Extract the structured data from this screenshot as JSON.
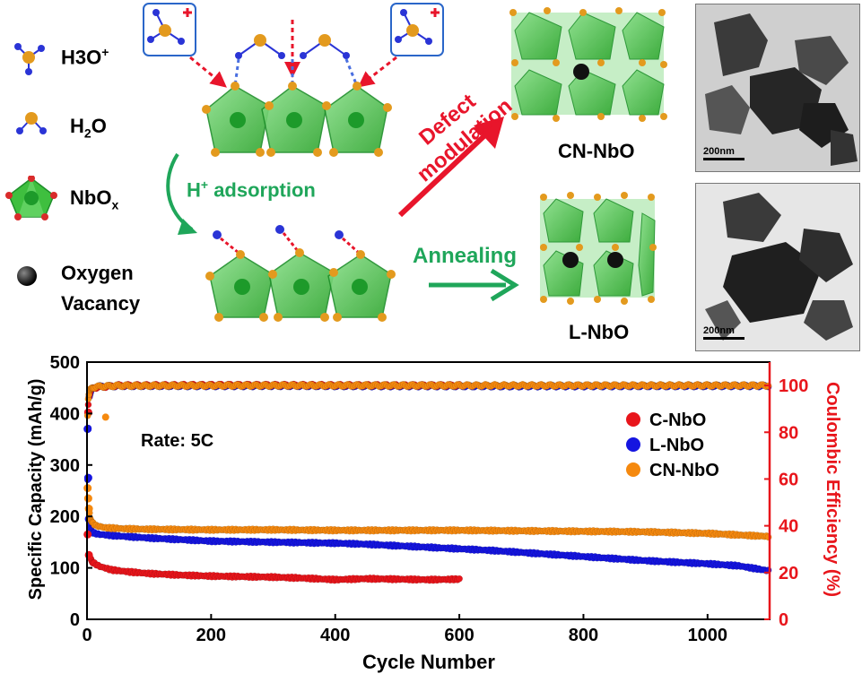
{
  "legend_schematic": {
    "h3o_label": "H3O",
    "h3o_sup": "+",
    "h2o_label": "H",
    "h2o_sub": "2",
    "h2o_tail": "O",
    "nbo_label": "NbO",
    "nbo_sub": "x",
    "vacancy_label_1": "Oxygen",
    "vacancy_label_2": "Vacancy"
  },
  "process": {
    "h_adsorption_sup": "+",
    "h_adsorption_h": "H",
    "h_adsorption_rest": " adsorption",
    "defect_1": "Defect",
    "defect_2": "modulation",
    "annealing": "Annealing",
    "cn_nbo": "CN-NbO",
    "l_nbo": "L-NbO"
  },
  "tem": {
    "top_scale": "200nm",
    "bottom_scale": "200nm"
  },
  "colors": {
    "c_nbo": "#e8151b",
    "l_nbo": "#1515e0",
    "cn_nbo": "#f5890f",
    "ce_axis": "#e8151b",
    "green_arrow": "#1fa65a",
    "red_arrow": "#e8152b",
    "octahedron": "#3fbf3f",
    "oxygen": "#e39a1e",
    "hydrogen": "#2a34d6"
  },
  "chart_data": {
    "type": "scatter",
    "annotation": "Rate: 5C",
    "xlabel": "Cycle Number",
    "ylabel": "Specific Capacity (mAh/g)",
    "y2label": "Coulombic Efficiency (%)",
    "xlim": [
      0,
      1100
    ],
    "ylim": [
      0,
      500
    ],
    "y2lim": [
      0,
      110
    ],
    "xticks": [
      0,
      200,
      400,
      600,
      800,
      1000
    ],
    "yticks": [
      0,
      100,
      200,
      300,
      400,
      500
    ],
    "y2ticks": [
      0,
      20,
      40,
      60,
      80,
      100
    ],
    "legend_position": "upper-right",
    "series": [
      {
        "name": "C-NbO",
        "last_cycle": 600,
        "capacity": [
          [
            1,
            165
          ],
          [
            2,
            402
          ],
          [
            3,
            125
          ],
          [
            5,
            118
          ],
          [
            10,
            110
          ],
          [
            20,
            103
          ],
          [
            40,
            96
          ],
          [
            70,
            92
          ],
          [
            100,
            89
          ],
          [
            150,
            86
          ],
          [
            200,
            84
          ],
          [
            250,
            83
          ],
          [
            300,
            82
          ],
          [
            350,
            80
          ],
          [
            400,
            77
          ],
          [
            450,
            79
          ],
          [
            500,
            78
          ],
          [
            550,
            77
          ],
          [
            600,
            78
          ]
        ],
        "efficiency": [
          [
            1,
            89
          ],
          [
            3,
            95
          ],
          [
            6,
            98
          ],
          [
            10,
            99
          ],
          [
            50,
            100
          ],
          [
            200,
            100.2
          ],
          [
            400,
            100.1
          ],
          [
            600,
            100
          ]
        ]
      },
      {
        "name": "L-NbO",
        "last_cycle": 1100,
        "capacity": [
          [
            1,
            370
          ],
          [
            2,
            275
          ],
          [
            3,
            195
          ],
          [
            5,
            175
          ],
          [
            10,
            168
          ],
          [
            20,
            165
          ],
          [
            50,
            162
          ],
          [
            100,
            158
          ],
          [
            150,
            155
          ],
          [
            200,
            152
          ],
          [
            250,
            151
          ],
          [
            300,
            150
          ],
          [
            350,
            149
          ],
          [
            400,
            148
          ],
          [
            450,
            146
          ],
          [
            500,
            143
          ],
          [
            550,
            140
          ],
          [
            600,
            137
          ],
          [
            650,
            134
          ],
          [
            700,
            130
          ],
          [
            750,
            126
          ],
          [
            800,
            122
          ],
          [
            850,
            118
          ],
          [
            900,
            114
          ],
          [
            950,
            111
          ],
          [
            1000,
            108
          ],
          [
            1050,
            104
          ],
          [
            1100,
            94
          ]
        ],
        "efficiency": [
          [
            1,
            60
          ],
          [
            2,
            82
          ],
          [
            4,
            95
          ],
          [
            8,
            98.5
          ],
          [
            15,
            99.5
          ],
          [
            50,
            99.8
          ],
          [
            300,
            99.8
          ],
          [
            700,
            99.7
          ],
          [
            1100,
            99.8
          ]
        ]
      },
      {
        "name": "CN-NbO",
        "last_cycle": 1100,
        "capacity": [
          [
            1,
            255
          ],
          [
            2,
            235
          ],
          [
            3,
            215
          ],
          [
            5,
            198
          ],
          [
            8,
            188
          ],
          [
            15,
            182
          ],
          [
            30,
            178
          ],
          [
            60,
            176
          ],
          [
            100,
            175
          ],
          [
            200,
            174
          ],
          [
            300,
            174
          ],
          [
            400,
            173
          ],
          [
            500,
            173
          ],
          [
            600,
            173
          ],
          [
            700,
            172
          ],
          [
            800,
            171
          ],
          [
            900,
            170
          ],
          [
            1000,
            167
          ],
          [
            1100,
            161
          ]
        ],
        "efficiency": [
          [
            1,
            87
          ],
          [
            2,
            94
          ],
          [
            4,
            97.5
          ],
          [
            8,
            99
          ],
          [
            15,
            99.5
          ],
          [
            50,
            99.9
          ],
          [
            300,
            100
          ],
          [
            700,
            100
          ],
          [
            1100,
            100
          ]
        ]
      }
    ]
  }
}
